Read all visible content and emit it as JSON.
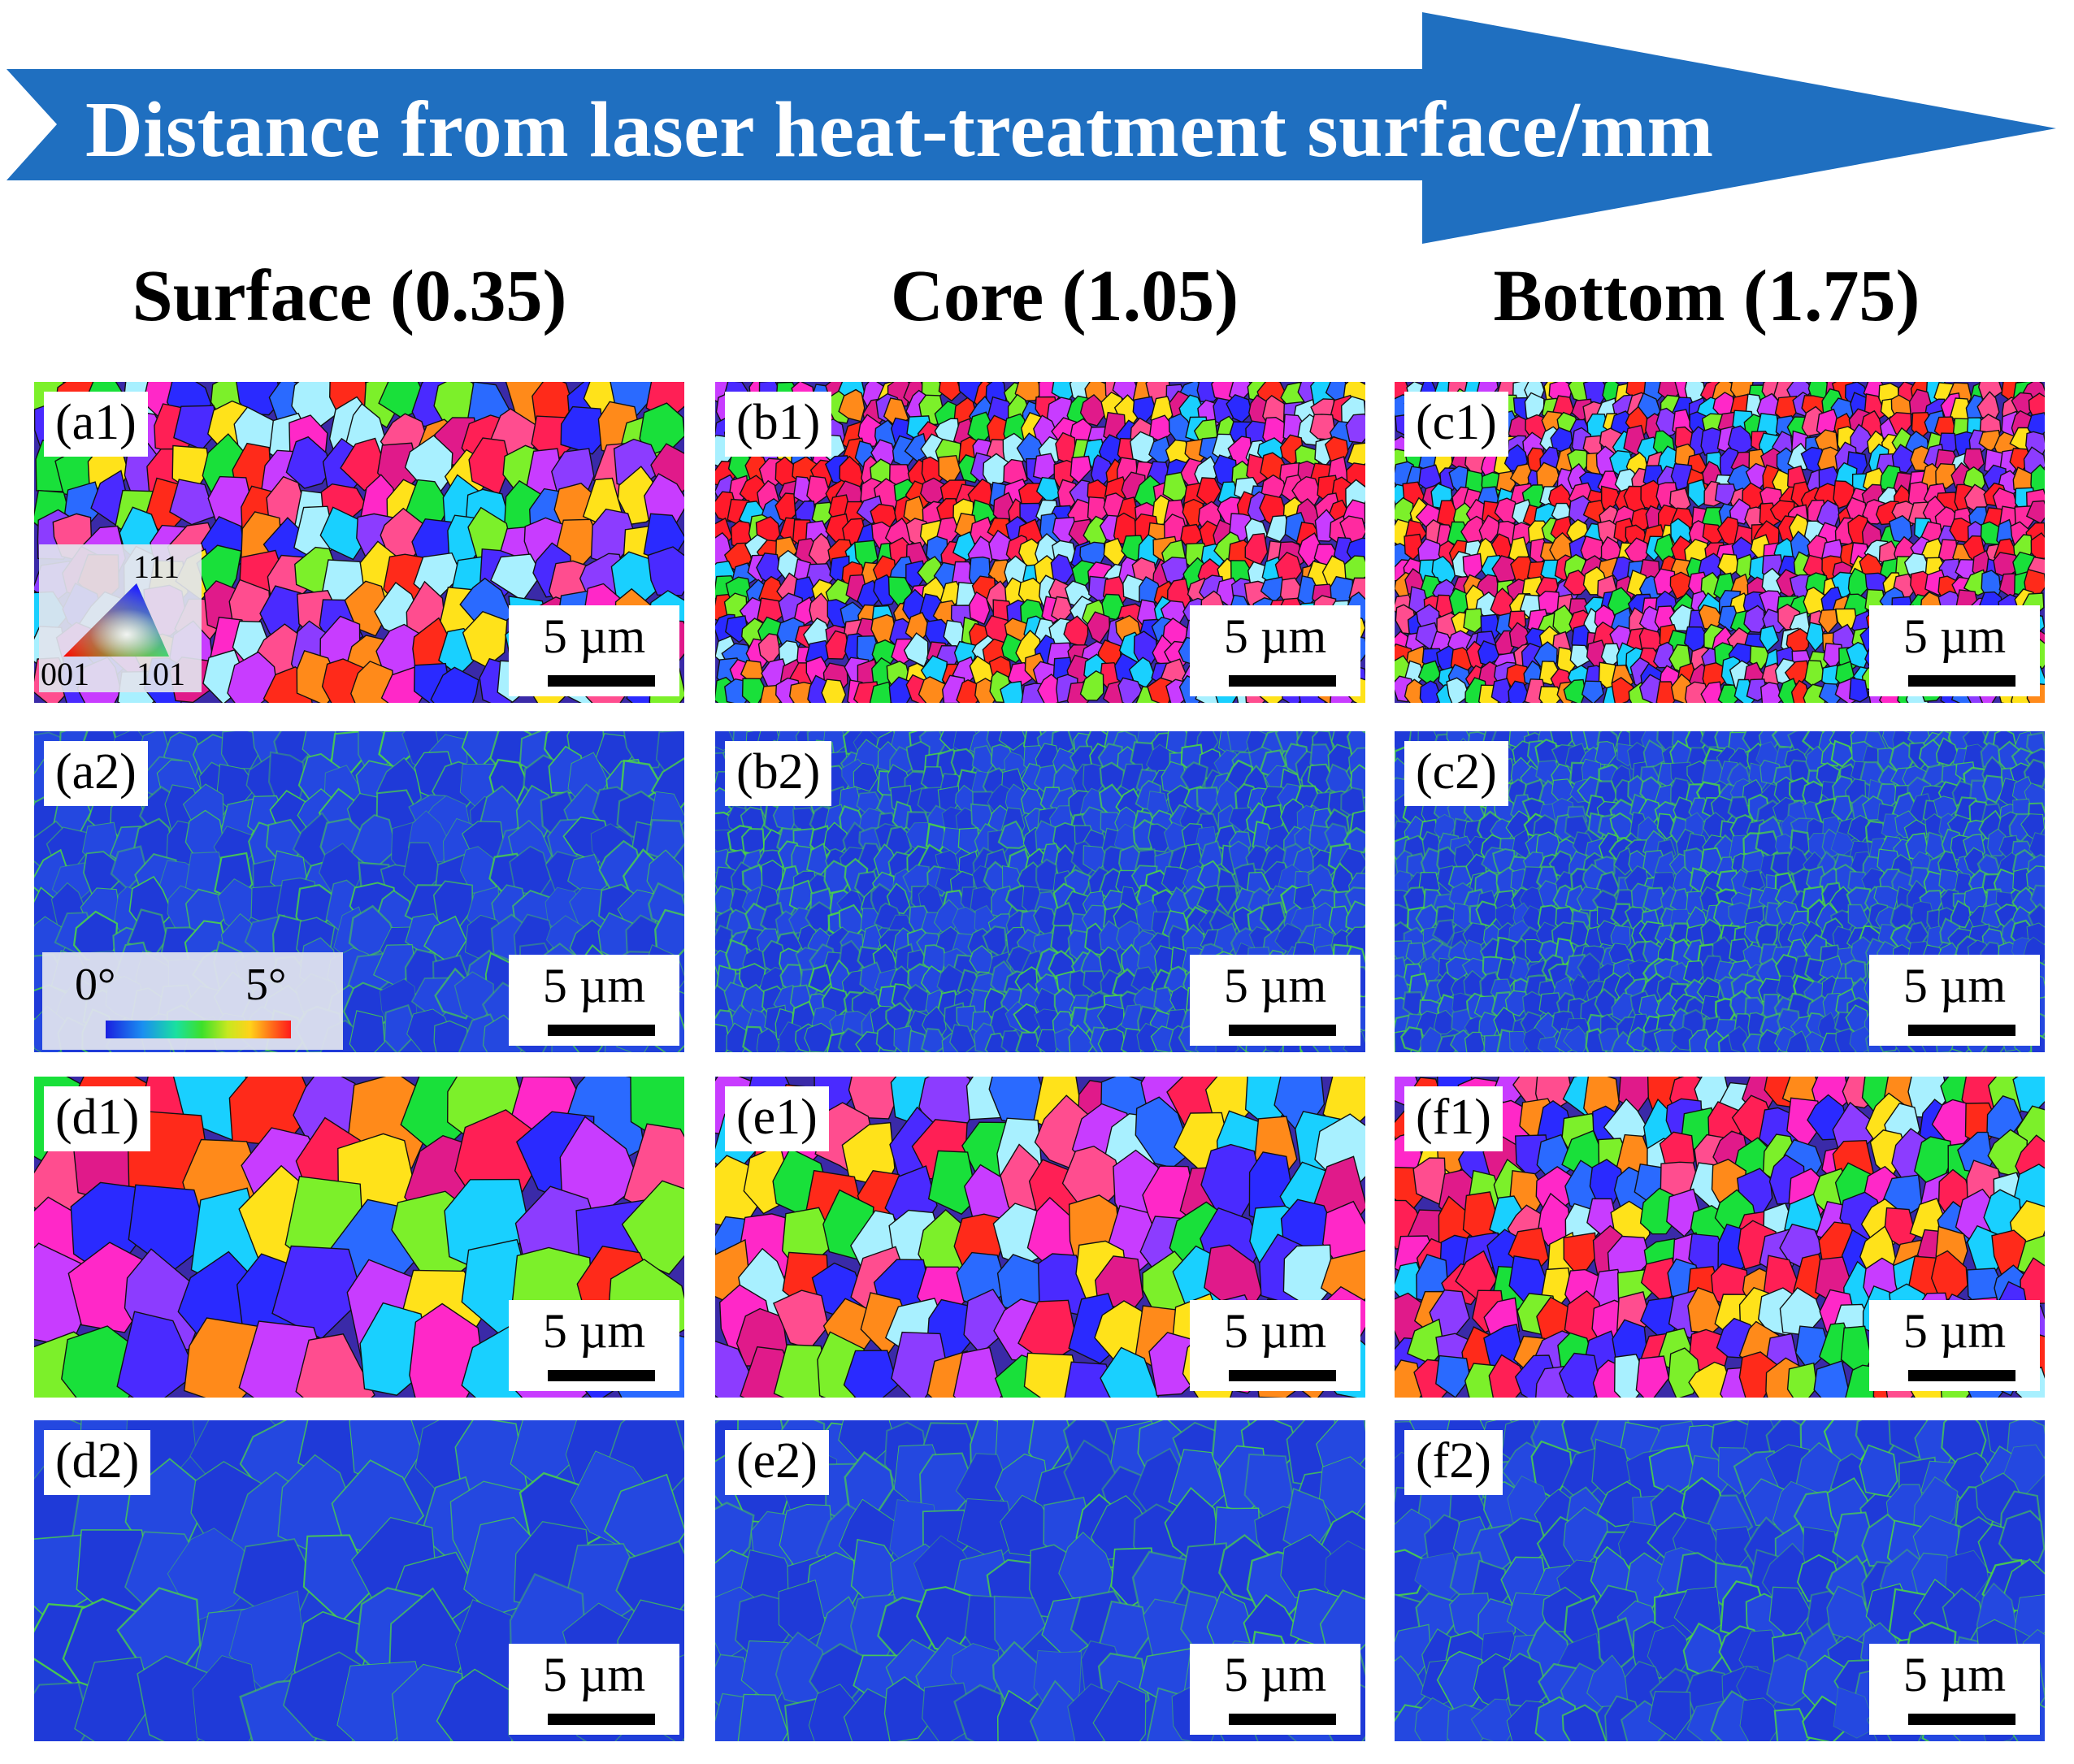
{
  "banner": {
    "title": "Distance from laser heat-treatment surface/mm",
    "color": "#1f6fc0"
  },
  "columns": [
    {
      "header": "Surface (0.35)"
    },
    {
      "header": "Core (1.05)"
    },
    {
      "header": "Bottom (1.75)"
    }
  ],
  "panels": [
    {
      "id": "a1",
      "label": "(a1)",
      "type": "ipf",
      "scale": "5 µm"
    },
    {
      "id": "b1",
      "label": "(b1)",
      "type": "ipf",
      "scale": "5 µm"
    },
    {
      "id": "c1",
      "label": "(c1)",
      "type": "ipf",
      "scale": "5 µm"
    },
    {
      "id": "a2",
      "label": "(a2)",
      "type": "kam",
      "scale": "5 µm"
    },
    {
      "id": "b2",
      "label": "(b2)",
      "type": "kam",
      "scale": "5 µm"
    },
    {
      "id": "c2",
      "label": "(c2)",
      "type": "kam",
      "scale": "5 µm"
    },
    {
      "id": "d1",
      "label": "(d1)",
      "type": "ipf",
      "scale": "5 µm"
    },
    {
      "id": "e1",
      "label": "(e1)",
      "type": "ipf",
      "scale": "5 µm"
    },
    {
      "id": "f1",
      "label": "(f1)",
      "type": "ipf",
      "scale": "5 µm"
    },
    {
      "id": "d2",
      "label": "(d2)",
      "type": "kam",
      "scale": "5 µm"
    },
    {
      "id": "e2",
      "label": "(e2)",
      "type": "kam",
      "scale": "5 µm"
    },
    {
      "id": "f2",
      "label": "(f2)",
      "type": "kam",
      "scale": "5 µm"
    }
  ],
  "ipf_legend": {
    "top": "111",
    "left": "001",
    "right": "101"
  },
  "kam_legend": {
    "min": "0°",
    "max": "5°"
  },
  "colors": {
    "kam_background": "#1f3fd8",
    "kam_boundary": "#4fe03a",
    "ipf_red": "#ff2a1a",
    "ipf_blue": "#2a2aff",
    "ipf_green": "#19e03a",
    "ipf_magenta": "#ff28c8",
    "ipf_purple": "#8c3cff"
  }
}
